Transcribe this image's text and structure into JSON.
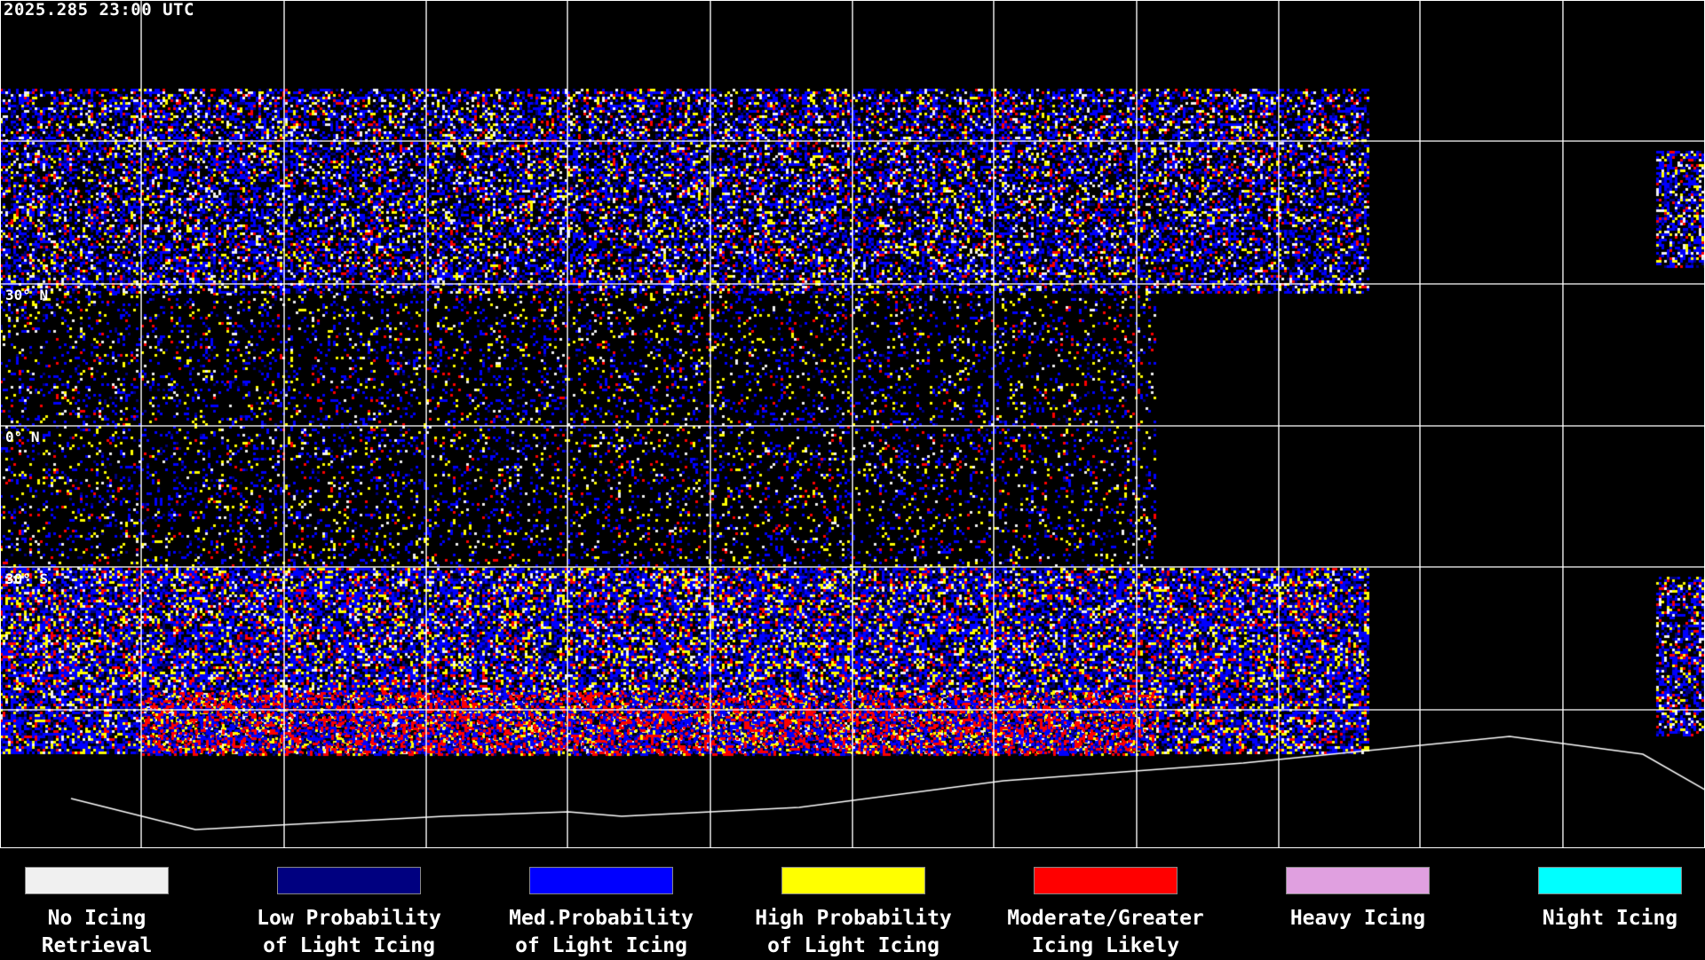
{
  "header": {
    "timestamp": "2025.285 23:00 UTC"
  },
  "map": {
    "latitude_labels": [
      "30° N",
      "0° N",
      "30° S"
    ],
    "background_color": "#000000",
    "gridline_color": "#ffffff",
    "coastline_color": "#ffffff"
  },
  "legend": [
    {
      "line1": "No Icing",
      "line2": "Retrieval",
      "color": "#f0f0f0"
    },
    {
      "line1": "Low Probability",
      "line2": "of Light Icing",
      "color": "#000080"
    },
    {
      "line1": "Med.Probability",
      "line2": "of Light Icing",
      "color": "#0000ff"
    },
    {
      "line1": "High Probability",
      "line2": "of Light Icing",
      "color": "#ffff00"
    },
    {
      "line1": "Moderate/Greater",
      "line2": "Icing Likely",
      "color": "#ff0000"
    },
    {
      "line1": "Heavy Icing",
      "line2": "",
      "color": "#e0a0e0"
    },
    {
      "line1": "Night Icing",
      "line2": "",
      "color": "#00ffff"
    }
  ]
}
